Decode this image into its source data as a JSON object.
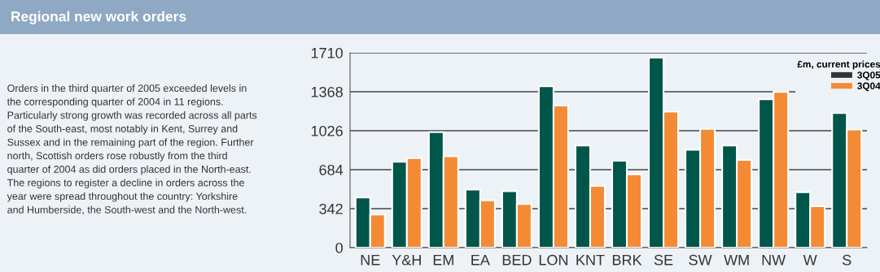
{
  "chart_data": {
    "type": "bar",
    "title": "Regional new work orders",
    "annotations": [
      "Orders in the third quarter of 2005 exceeded levels in\nthe corresponding quarter of 2004 in 11 regions.\nParticularly strong growth was recorded across all parts\nof the South-east, most notably in Kent, Surrey and\nSussex and in the remaining part of the region. Further\nnorth, Scottish orders rose robustly from the third\nquarter of 2004 as did orders placed in the North-east.\nThe regions to register a decline in orders across the\nyear were spread throughout the country: Yorkshire\nand Humberside, the South-west and the North-west."
    ],
    "categories": [
      "NE",
      "Y&H",
      "EM",
      "EA",
      "BED",
      "LON",
      "KNT",
      "BRK",
      "SE",
      "SW",
      "WM",
      "NW",
      "W",
      "S"
    ],
    "series": [
      {
        "name": "3Q05",
        "color": "#00564a",
        "values": [
          441,
          754,
          1014,
          510,
          496,
          1417,
          897,
          763,
          1667,
          859,
          897,
          1302,
          487,
          1181
        ]
      },
      {
        "name": "3Q04",
        "color": "#f58a34",
        "values": [
          291,
          785,
          801,
          415,
          384,
          1247,
          541,
          644,
          1193,
          1042,
          770,
          1367,
          363,
          1037
        ]
      }
    ],
    "legend_title": "£m, current prices",
    "legend": "top right",
    "ylim": [
      0,
      1710
    ],
    "yticks": [
      0,
      342,
      684,
      1026,
      1368,
      1710
    ],
    "grid": "y"
  }
}
